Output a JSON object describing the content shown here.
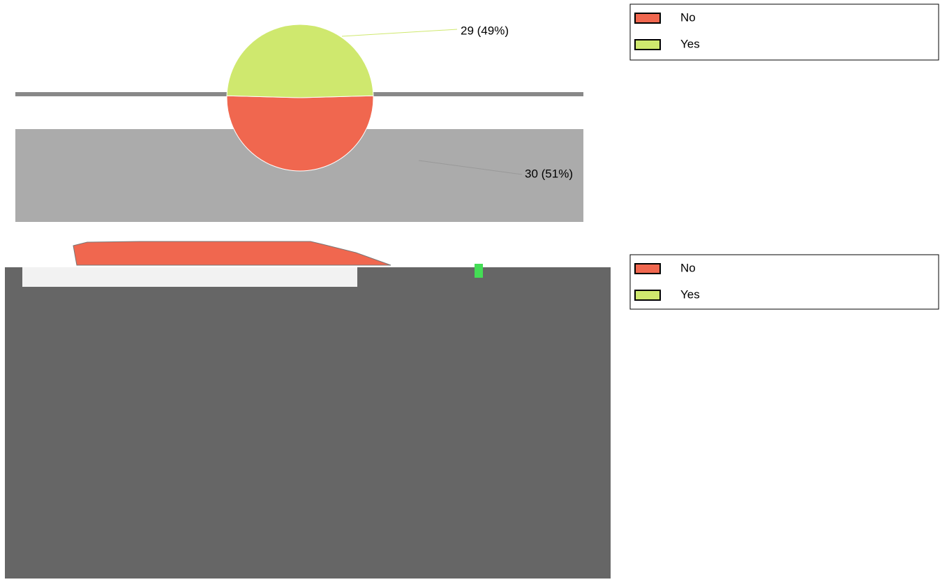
{
  "chart_data": [
    {
      "type": "pie",
      "categories": [
        "No",
        "Yes"
      ],
      "values": [
        30,
        29
      ],
      "value_labels": [
        "30 (51%)",
        "29 (49%)"
      ],
      "colors": [
        "#f0674f",
        "#cfe86e"
      ]
    },
    {
      "type": "map",
      "series": [
        {
          "name": "No",
          "color": "#f0674f"
        },
        {
          "name": "Yes",
          "color": "#cfe86e"
        }
      ]
    }
  ]
}
